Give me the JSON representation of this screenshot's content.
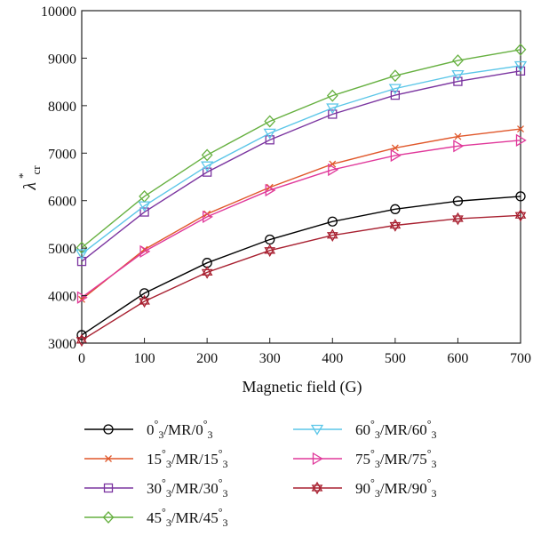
{
  "chart_data": {
    "type": "line",
    "title": "",
    "xlabel": "Magnetic field (G)",
    "ylabel": {
      "main": "λ",
      "sup": "*",
      "sub": "cr"
    },
    "x": [
      0,
      100,
      200,
      300,
      400,
      500,
      600,
      700
    ],
    "xlim": [
      0,
      700
    ],
    "ylim": [
      3000,
      10000
    ],
    "xticks": [
      "0",
      "100",
      "200",
      "300",
      "400",
      "500",
      "600",
      "700"
    ],
    "yticks": [
      "3000",
      "4000",
      "5000",
      "6000",
      "7000",
      "8000",
      "9000",
      "10000"
    ],
    "grid": false,
    "legend_position": "bottom",
    "series": [
      {
        "name": "0°3/MR/0°3",
        "label_parts": [
          "0",
          "/MR/",
          "0"
        ],
        "color": "#000000",
        "marker": "circle",
        "values": [
          3170,
          4050,
          4690,
          5180,
          5560,
          5820,
          5990,
          6090
        ]
      },
      {
        "name": "15°3/MR/15°3",
        "label_parts": [
          "15",
          "/MR/",
          "15"
        ],
        "color": "#e0572a",
        "marker": "x",
        "values": [
          3920,
          4970,
          5720,
          6280,
          6770,
          7110,
          7350,
          7510
        ]
      },
      {
        "name": "30°3/MR/30°3",
        "label_parts": [
          "30",
          "/MR/",
          "30"
        ],
        "color": "#7b35a0",
        "marker": "square",
        "values": [
          4720,
          5760,
          6600,
          7280,
          7820,
          8220,
          8510,
          8730
        ]
      },
      {
        "name": "45°3/MR/45°3",
        "label_parts": [
          "45",
          "/MR/",
          "45"
        ],
        "color": "#66b040",
        "marker": "diamond",
        "values": [
          5010,
          6090,
          6960,
          7670,
          8210,
          8630,
          8950,
          9180
        ]
      },
      {
        "name": "60°3/MR/60°3",
        "label_parts": [
          "60",
          "/MR/",
          "60"
        ],
        "color": "#5bc6e8",
        "marker": "triangle-down",
        "values": [
          4880,
          5890,
          6730,
          7420,
          7950,
          8360,
          8650,
          8840
        ]
      },
      {
        "name": "75°3/MR/75°3",
        "label_parts": [
          "75",
          "/MR/",
          "75"
        ],
        "color": "#e0389a",
        "marker": "triangle-right",
        "values": [
          3960,
          4930,
          5660,
          6220,
          6650,
          6950,
          7150,
          7270
        ]
      },
      {
        "name": "90°3/MR/90°3",
        "label_parts": [
          "90",
          "/MR/",
          "90"
        ],
        "color": "#a82030",
        "marker": "star",
        "values": [
          3060,
          3880,
          4490,
          4950,
          5270,
          5480,
          5620,
          5690
        ]
      }
    ]
  }
}
